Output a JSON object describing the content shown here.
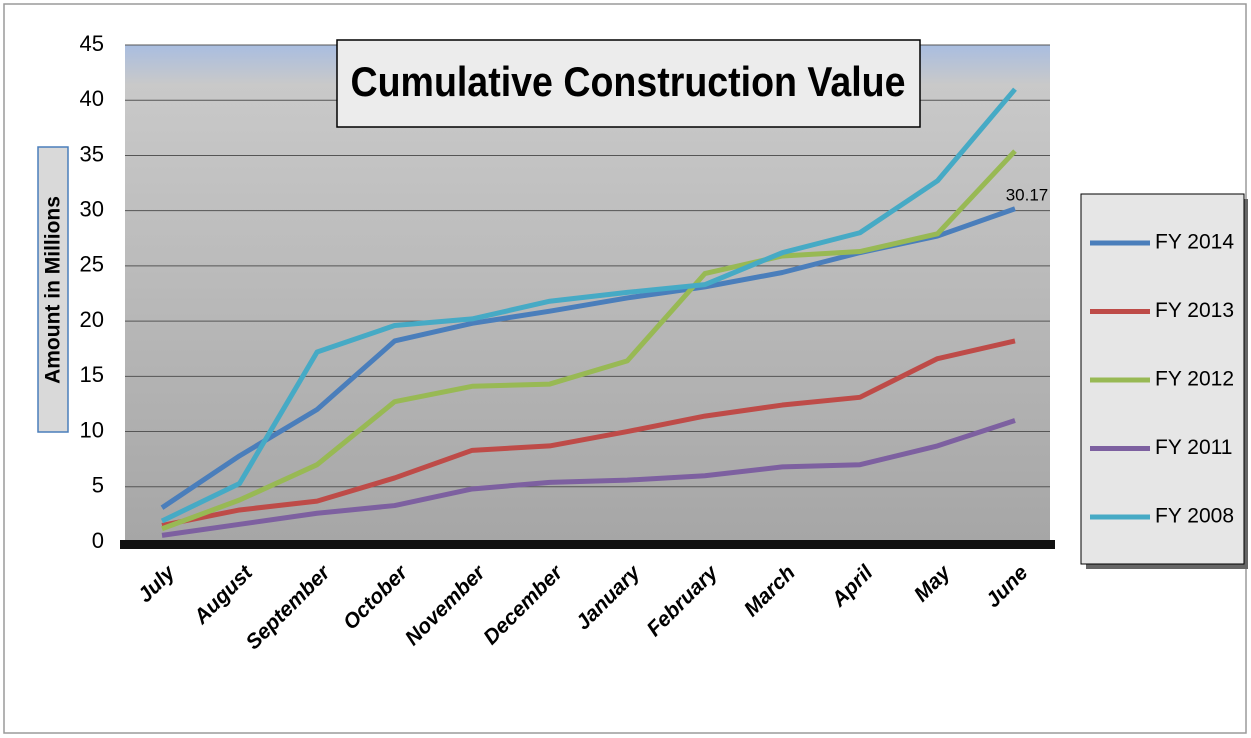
{
  "chart_data": {
    "type": "line",
    "title": "Cumulative Construction Value",
    "y_label": "Amount in Millions",
    "categories": [
      "July",
      "August",
      "September",
      "October",
      "November",
      "December",
      "January",
      "February",
      "March",
      "April",
      "May",
      "June"
    ],
    "series": [
      {
        "name": "FY 2014",
        "color": "#4a7ebb",
        "values": [
          3.1,
          7.8,
          12,
          18.2,
          19.8,
          20.9,
          22.1,
          23.1,
          24.4,
          26.2,
          27.7,
          30.17
        ]
      },
      {
        "name": "FY 2013",
        "color": "#be4b48",
        "values": [
          1.5,
          2.9,
          3.7,
          5.8,
          8.3,
          8.7,
          10,
          11.4,
          12.4,
          13.1,
          16.6,
          18.2
        ]
      },
      {
        "name": "FY 2012",
        "color": "#98b954",
        "values": [
          1.2,
          3.8,
          7,
          12.7,
          14.1,
          14.3,
          16.4,
          24.3,
          25.9,
          26.3,
          27.9,
          35.4
        ]
      },
      {
        "name": "FY 2011",
        "color": "#7d60a0",
        "values": [
          0.6,
          1.6,
          2.6,
          3.3,
          4.8,
          5.4,
          5.6,
          6,
          6.8,
          7,
          8.7,
          11
        ]
      },
      {
        "name": "FY 2008",
        "color": "#46aac5",
        "values": [
          1.9,
          5.3,
          17.2,
          19.6,
          20.2,
          21.8,
          22.6,
          23.3,
          26.2,
          28,
          32.7,
          41
        ]
      }
    ],
    "data_label": {
      "series": 0,
      "index": 11
    },
    "ylim": [
      0,
      45
    ],
    "yticks": [
      0,
      5,
      10,
      15,
      20,
      25,
      30,
      35,
      40,
      45
    ],
    "grid": true,
    "legend": "right"
  }
}
